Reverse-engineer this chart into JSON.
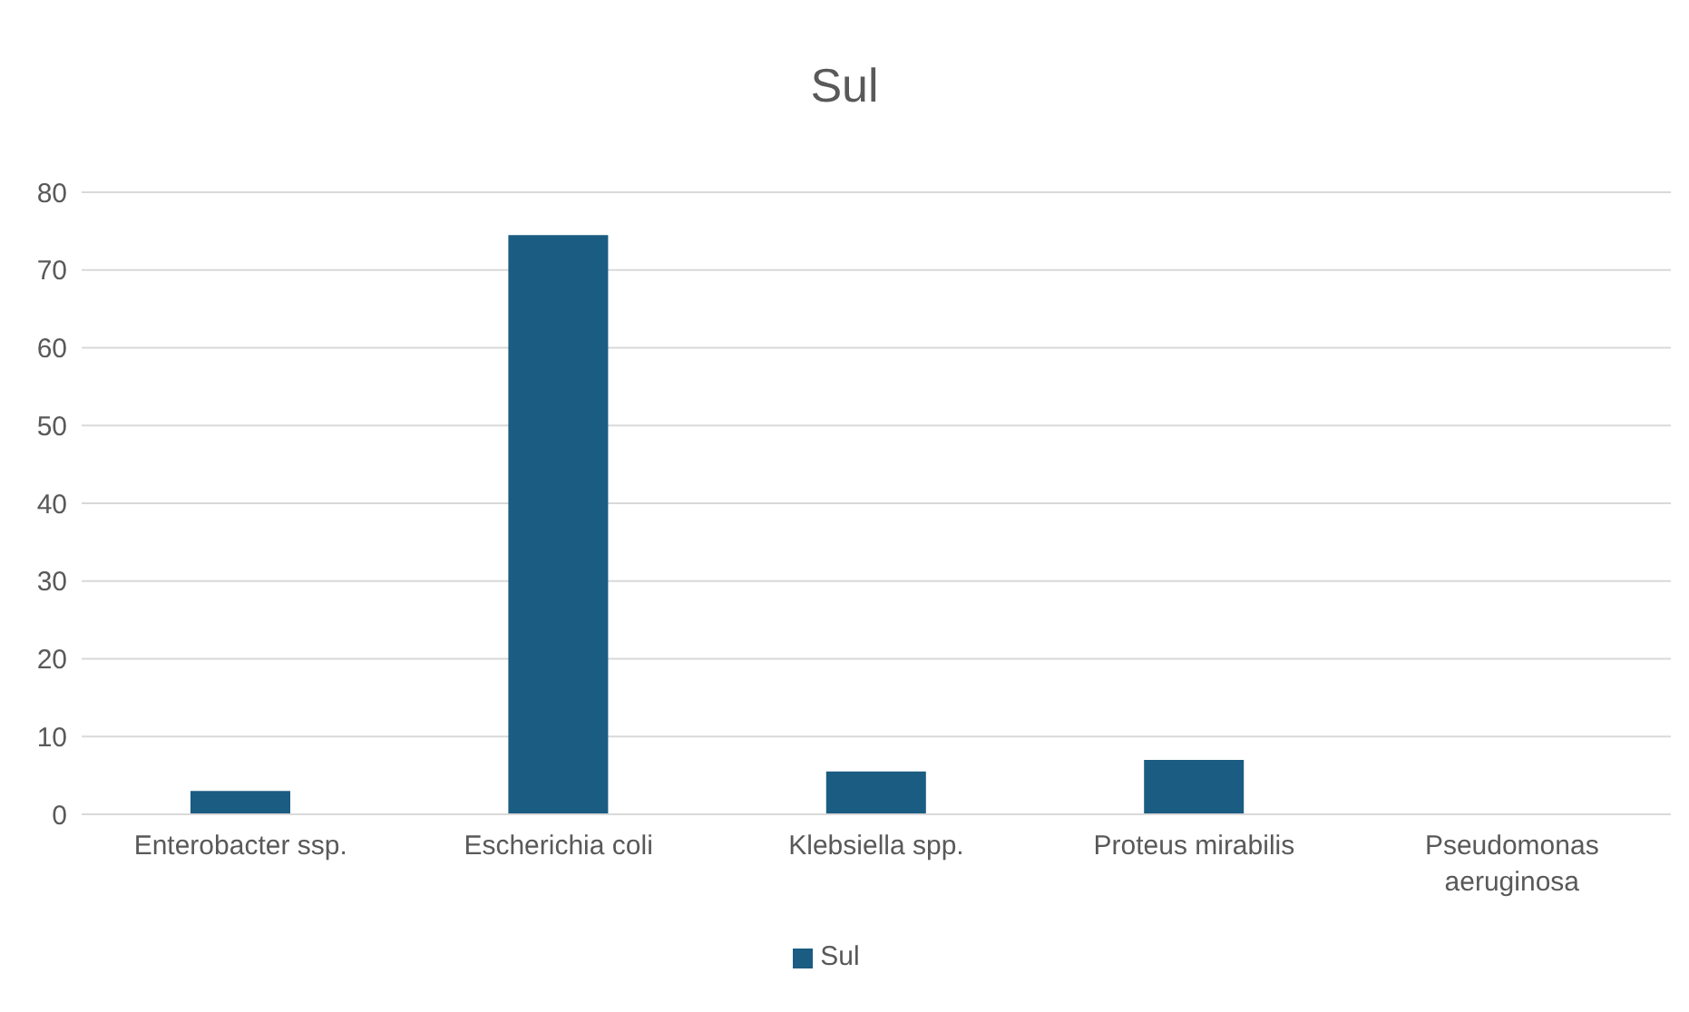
{
  "chart_data": {
    "type": "bar",
    "title": "Sul",
    "categories": [
      "Enterobacter ssp.",
      "Escherichia coli",
      "Klebsiella spp.",
      "Proteus mirabilis",
      "Pseudomonas aeruginosa"
    ],
    "series": [
      {
        "name": "Sul",
        "color": "#1b5c82",
        "values": [
          3,
          74.5,
          5.5,
          7,
          0
        ]
      }
    ],
    "ylim": [
      0,
      80
    ],
    "yticks": [
      0,
      10,
      20,
      30,
      40,
      50,
      60,
      70,
      80
    ],
    "grid": "y",
    "legend": "bottom"
  }
}
